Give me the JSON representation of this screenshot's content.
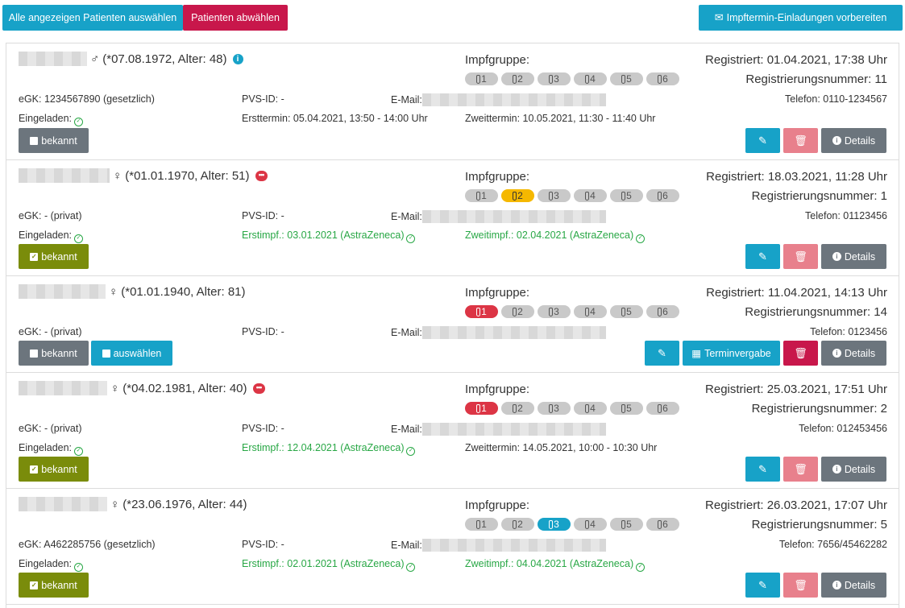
{
  "toolbar": {
    "select_all": "Alle angezeigen Patienten auswählen",
    "deselect": "Patienten abwählen",
    "invite": "Impftermin-Einladungen vorbereiten"
  },
  "labels": {
    "impfgruppe": "Impfgruppe:",
    "pvs": "PVS-ID: -",
    "email": "E-Mail:",
    "eingeladen": "Eingeladen:",
    "bekannt": "bekannt",
    "auswaehlen": "auswählen",
    "details": "Details",
    "terminvergabe": "Terminvergabe"
  },
  "colors": {
    "info": "#17a2c8",
    "danger": "#c8174b",
    "success": "#28a745",
    "olive": "#7a8c0b",
    "gray": "#6c757d"
  },
  "patients": [
    {
      "gender": "♂",
      "birth": "(*07.08.1972, Alter: 48)",
      "icon": "info-icon",
      "registriert": "Registriert: 01.04.2021, 17:38 Uhr",
      "regnr": "Registrierungsnummer: 11",
      "egk": "eGK: 1234567890 (gesetzlich)",
      "telefon": "Telefon: 0110-1234567",
      "termin1": "Ersttermin: 05.04.2021, 13:50 - 14:00 Uhr",
      "termin2": "Zweittermin: 10.05.2021, 11:30 - 11:40 Uhr",
      "group_active": 0
    },
    {
      "gender": "♀",
      "birth": "(*01.01.1970, Alter: 51)",
      "icon": "comment-icon",
      "registriert": "Registriert: 18.03.2021, 11:28 Uhr",
      "regnr": "Registrierungsnummer: 1",
      "egk": "eGK: - (privat)",
      "telefon": "Telefon: 01123456",
      "termin1": "Erstimpf.: 03.01.2021 (AstraZeneca)",
      "termin2": "Zweitimpf.: 02.04.2021 (AstraZeneca)",
      "group_active": 2
    },
    {
      "gender": "♀",
      "birth": "(*01.01.1940, Alter: 81)",
      "registriert": "Registriert: 11.04.2021, 14:13 Uhr",
      "regnr": "Registrierungsnummer: 14",
      "egk": "eGK: - (privat)",
      "telefon": "Telefon: 0123456",
      "group_active": 1
    },
    {
      "gender": "♀",
      "birth": "(*04.02.1981, Alter: 40)",
      "icon": "comment-icon",
      "registriert": "Registriert: 25.03.2021, 17:51 Uhr",
      "regnr": "Registrierungsnummer: 2",
      "egk": "eGK: - (privat)",
      "telefon": "Telefon: 012453456",
      "termin1": "Erstimpf.: 12.04.2021 (AstraZeneca)",
      "termin2": "Zweittermin: 14.05.2021, 10:00 - 10:30 Uhr",
      "group_active": 1
    },
    {
      "gender": "♀",
      "birth": "(*23.06.1976, Alter: 44)",
      "registriert": "Registriert: 26.03.2021, 17:07 Uhr",
      "regnr": "Registrierungsnummer: 5",
      "egk": "eGK: A462285756 (gesetzlich)",
      "telefon": "Telefon: 7656/45462282",
      "termin1": "Erstimpf.: 02.01.2021 (AstraZeneca)",
      "termin2": "Zweitimpf.: 04.04.2021 (AstraZeneca)",
      "group_active": 3
    }
  ]
}
